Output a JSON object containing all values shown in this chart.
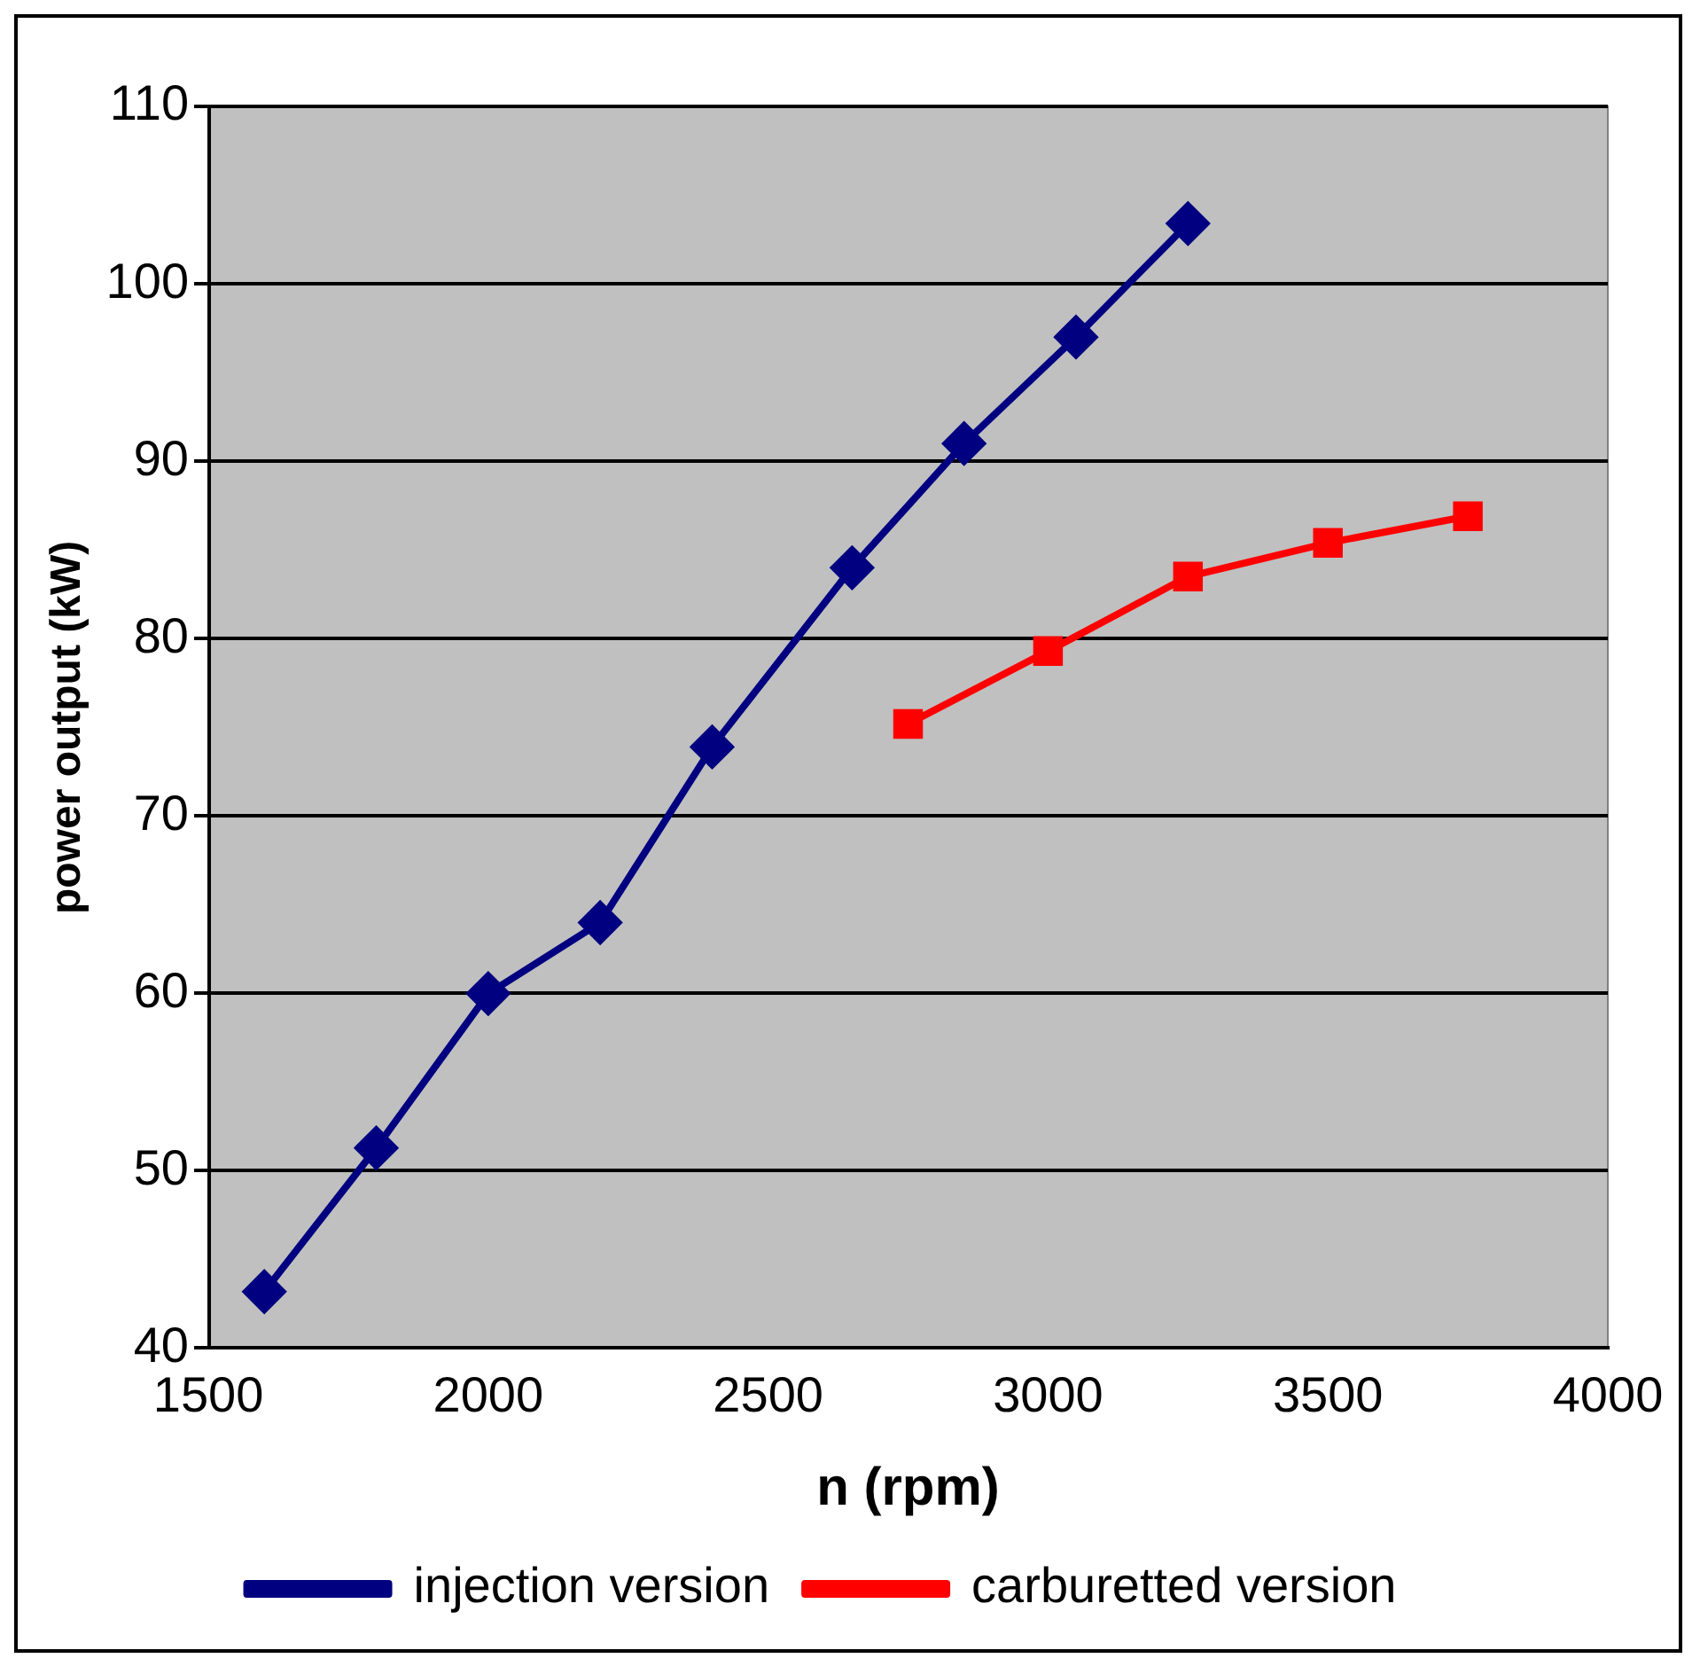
{
  "chart_data": {
    "type": "line",
    "xlabel": "n (rpm)",
    "ylabel": "power output (kW)",
    "xlim": [
      1500,
      4000
    ],
    "xticks": [
      1500,
      2000,
      2500,
      3000,
      3500,
      4000
    ],
    "ylim": [
      40,
      110
    ],
    "yticks": [
      40,
      50,
      60,
      70,
      80,
      90,
      100,
      110
    ],
    "grid": "y",
    "legend": "bottom",
    "series": [
      {
        "name": "injection version",
        "color": "#000080",
        "marker": "diamond",
        "x": [
          1600,
          1800,
          2000,
          2200,
          2400,
          2650,
          2850,
          3050,
          3250
        ],
        "values": [
          43.2,
          51.3,
          60,
          64,
          73.9,
          84,
          91,
          97,
          103.4
        ]
      },
      {
        "name": "carburetted version",
        "color": "#ff0000",
        "marker": "square",
        "x": [
          2750,
          3000,
          3250,
          3500,
          3750
        ],
        "values": [
          75.2,
          79.3,
          83.5,
          85.4,
          86.9
        ]
      }
    ]
  }
}
